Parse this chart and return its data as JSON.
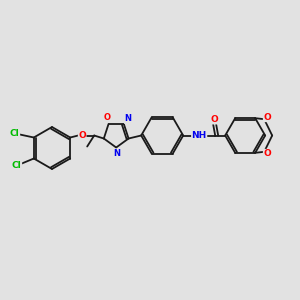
{
  "background_color": "#e2e2e2",
  "bond_color": "#1a1a1a",
  "atom_colors": {
    "Cl": "#00bb00",
    "O": "#ff0000",
    "N": "#0000ee",
    "C": "#1a1a1a"
  },
  "figsize": [
    3.0,
    3.0
  ],
  "dpi": 100
}
